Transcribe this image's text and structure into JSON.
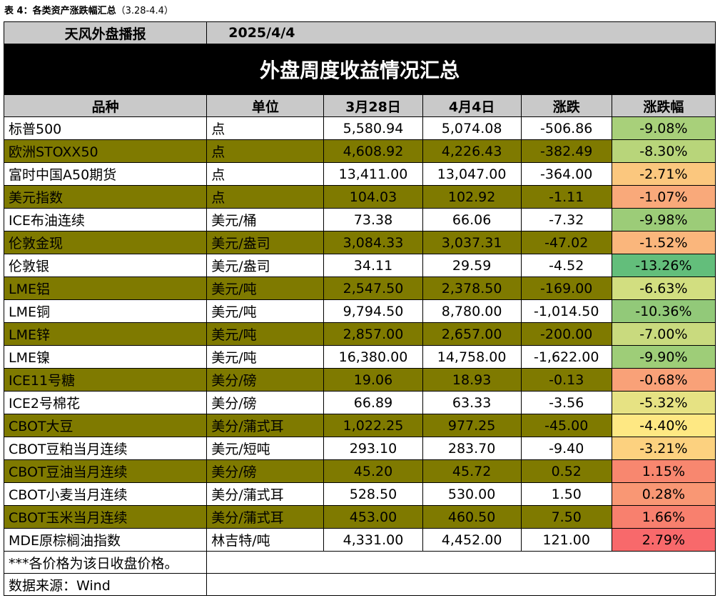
{
  "caption": {
    "label": "表 4：各类资产涨跌幅汇总",
    "range": "（3.28-4.4）"
  },
  "header": {
    "source": "天风外盘播报",
    "date": "2025/4/4"
  },
  "title": "外盘周度收益情况汇总",
  "columns": [
    "品种",
    "单位",
    "3月28日",
    "4月4日",
    "涨跌",
    "涨跌幅"
  ],
  "rows": [
    {
      "name": "标普500",
      "unit": "点",
      "prev": "5,580.94",
      "curr": "5,074.08",
      "chg": "-506.86",
      "pct": "-9.08%",
      "band": "white",
      "color": "#a8d07a"
    },
    {
      "name": "欧洲STOXX50",
      "unit": "点",
      "prev": "4,608.92",
      "curr": "4,226.43",
      "chg": "-382.49",
      "pct": "-8.30%",
      "band": "olive",
      "color": "#b8d57a"
    },
    {
      "name": "富时中国A50期货",
      "unit": "点",
      "prev": "13,411.00",
      "curr": "13,047.00",
      "chg": "-364.00",
      "pct": "-2.71%",
      "band": "white",
      "color": "#fbc77e"
    },
    {
      "name": "美元指数",
      "unit": "点",
      "prev": "104.03",
      "curr": "102.92",
      "chg": "-1.11",
      "pct": "-1.07%",
      "band": "olive",
      "color": "#f9a97a"
    },
    {
      "name": "ICE布油连续",
      "unit": "美元/桶",
      "prev": "73.38",
      "curr": "66.06",
      "chg": "-7.32",
      "pct": "-9.98%",
      "band": "white",
      "color": "#9ccc78"
    },
    {
      "name": "伦敦金现",
      "unit": "美元/盎司",
      "prev": "3,084.33",
      "curr": "3,037.31",
      "chg": "-47.02",
      "pct": "-1.52%",
      "band": "olive",
      "color": "#fab67c"
    },
    {
      "name": "伦敦银",
      "unit": "美元/盎司",
      "prev": "34.11",
      "curr": "29.59",
      "chg": "-4.52",
      "pct": "-13.26%",
      "band": "white",
      "color": "#63be7b"
    },
    {
      "name": "LME铝",
      "unit": "美元/吨",
      "prev": "2,547.50",
      "curr": "2,378.50",
      "chg": "-169.00",
      "pct": "-6.63%",
      "band": "olive",
      "color": "#d2de80"
    },
    {
      "name": "LME铜",
      "unit": "美元/吨",
      "prev": "9,794.50",
      "curr": "8,780.00",
      "chg": "-1,014.50",
      "pct": "-10.36%",
      "band": "white",
      "color": "#92c979"
    },
    {
      "name": "LME锌",
      "unit": "美元/吨",
      "prev": "2,857.00",
      "curr": "2,657.00",
      "chg": "-200.00",
      "pct": "-7.00%",
      "band": "olive",
      "color": "#c9da7e"
    },
    {
      "name": "LME镍",
      "unit": "美元/吨",
      "prev": "16,380.00",
      "curr": "14,758.00",
      "chg": "-1,622.00",
      "pct": "-9.90%",
      "band": "white",
      "color": "#9ecd78"
    },
    {
      "name": "ICE11号糖",
      "unit": "美分/磅",
      "prev": "19.06",
      "curr": "18.93",
      "chg": "-0.13",
      "pct": "-0.68%",
      "band": "olive",
      "color": "#f9a178"
    },
    {
      "name": "ICE2号棉花",
      "unit": "美分/磅",
      "prev": "66.89",
      "curr": "63.33",
      "chg": "-3.56",
      "pct": "-5.32%",
      "band": "white",
      "color": "#e6e283"
    },
    {
      "name": "CBOT大豆",
      "unit": "美分/蒲式耳",
      "prev": "1,022.25",
      "curr": "977.25",
      "chg": "-45.00",
      "pct": "-4.40%",
      "band": "olive",
      "color": "#fee883"
    },
    {
      "name": "CBOT豆粕当月连续",
      "unit": "美元/短吨",
      "prev": "293.10",
      "curr": "283.70",
      "chg": "-9.40",
      "pct": "-3.21%",
      "band": "white",
      "color": "#fcd17f"
    },
    {
      "name": "CBOT豆油当月连续",
      "unit": "美分/磅",
      "prev": "45.20",
      "curr": "45.72",
      "chg": "0.52",
      "pct": "1.15%",
      "band": "olive",
      "color": "#f8876f"
    },
    {
      "name": "CBOT小麦当月连续",
      "unit": "美分/蒲式耳",
      "prev": "528.50",
      "curr": "530.00",
      "chg": "1.50",
      "pct": "0.28%",
      "band": "white",
      "color": "#f99774"
    },
    {
      "name": "CBOT玉米当月连续",
      "unit": "美分/蒲式耳",
      "prev": "453.00",
      "curr": "460.50",
      "chg": "7.50",
      "pct": "1.66%",
      "band": "olive",
      "color": "#f8806e"
    },
    {
      "name": "MDE原棕榈油指数",
      "unit": "林吉特/吨",
      "prev": "4,331.00",
      "curr": "4,452.00",
      "chg": "121.00",
      "pct": "2.79%",
      "band": "white",
      "color": "#f8696b"
    }
  ],
  "notes": [
    "***各价格为该日收盘价格。",
    "数据来源：Wind"
  ]
}
